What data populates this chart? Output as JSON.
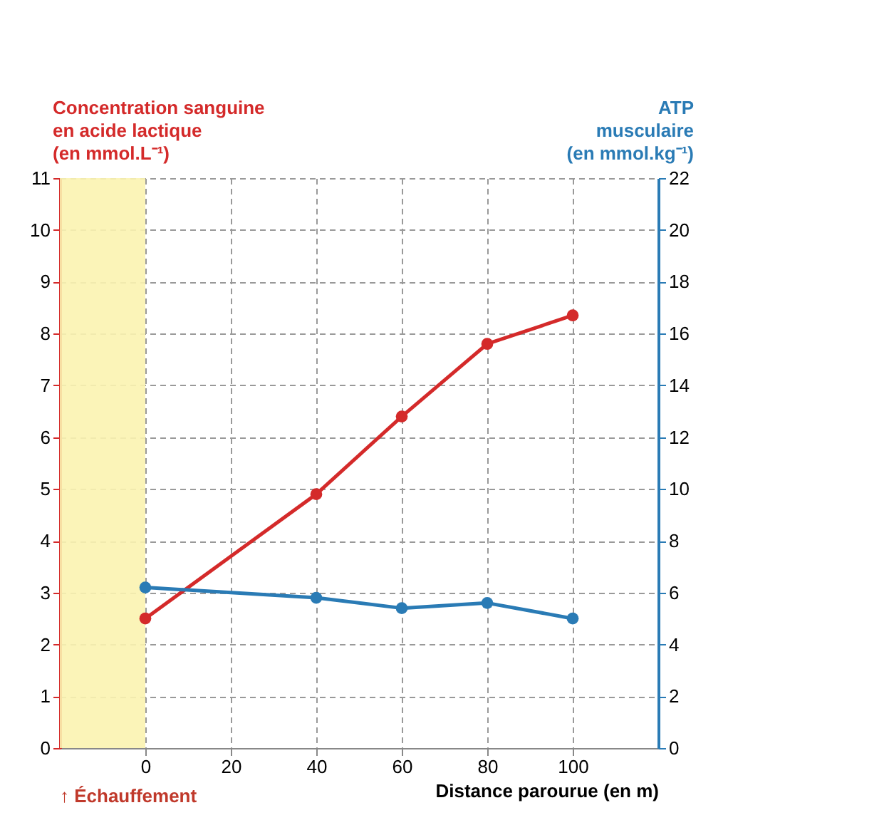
{
  "chart_data": {
    "type": "line",
    "xlabel": "Distance parourue (en m)",
    "ylabel": "Concentration sanguine en acide lactique (en mmol.L⁻¹)",
    "y2label": "ATP musculaire (en mmol.kg⁻¹)",
    "x": [
      0,
      40,
      60,
      80,
      100
    ],
    "series": [
      {
        "color": "#d42a2a",
        "values": [
          2.5,
          4.9,
          6.4,
          7.8,
          8.35
        ]
      },
      {
        "color": "#2a7bb5",
        "values": [
          6.2,
          5.8,
          5.4,
          5.6,
          5.0
        ],
        "axis": "y2"
      }
    ],
    "xlim": [
      -20,
      120
    ],
    "xticks": [
      0,
      20,
      40,
      60,
      80,
      100
    ],
    "ylim": [
      0,
      11
    ],
    "yticks": [
      0,
      1,
      2,
      3,
      4,
      5,
      6,
      7,
      8,
      9,
      10,
      11
    ],
    "y2lim": [
      0,
      22
    ],
    "y2ticks": [
      0,
      2,
      4,
      6,
      8,
      10,
      12,
      14,
      16,
      18,
      20,
      22
    ],
    "bands": [
      {
        "axis": "x",
        "from": -20,
        "to": 0,
        "label": "↑ Échauffement",
        "color": "#fbf3b0"
      }
    ],
    "grid": true,
    "marker": "circle",
    "line_style": "solid"
  }
}
